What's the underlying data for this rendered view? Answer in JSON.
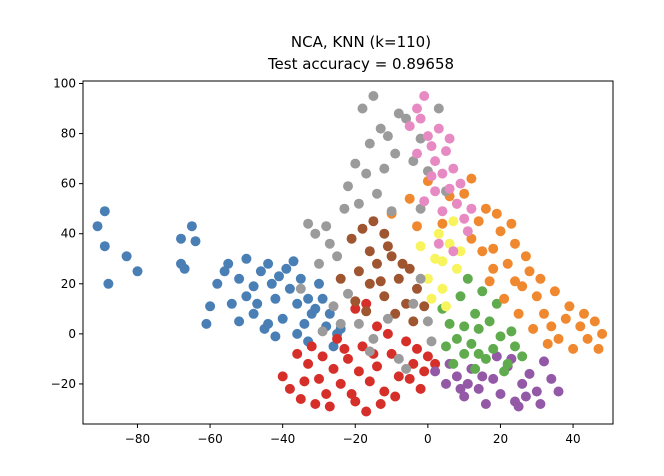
{
  "chart_data": {
    "type": "scatter",
    "title": "NCA, KNN (k=110)",
    "subtitle": "Test accuracy = 0.89658",
    "xlabel": "",
    "ylabel": "",
    "xlim": [
      -95,
      51
    ],
    "ylim": [
      -36,
      101
    ],
    "xticks": [
      -80,
      -60,
      -40,
      -20,
      0,
      20,
      40
    ],
    "yticks": [
      -20,
      0,
      20,
      40,
      60,
      80,
      100
    ],
    "grid": false,
    "legend": "none",
    "colors": {
      "blue": "#4a7fb5",
      "red": "#d62f2a",
      "purple": "#9358a6",
      "green": "#5fab4e",
      "orange": "#f0882f",
      "yellow": "#f7f45e",
      "brown": "#9e5530",
      "gray": "#9b9b9b",
      "pink": "#e78ac3"
    },
    "series": [
      {
        "color": "blue",
        "points": [
          [
            -91,
            43
          ],
          [
            -89,
            49
          ],
          [
            -89,
            35
          ],
          [
            -88,
            20
          ],
          [
            -83,
            31
          ],
          [
            -80,
            25
          ],
          [
            -68,
            38
          ],
          [
            -68,
            28
          ],
          [
            -67,
            26
          ],
          [
            -65,
            43
          ],
          [
            -64,
            37
          ],
          [
            -61,
            4
          ],
          [
            -60,
            11
          ],
          [
            -58,
            20
          ],
          [
            -56,
            25
          ],
          [
            -55,
            28
          ],
          [
            -52,
            22
          ],
          [
            -50,
            15
          ],
          [
            -48,
            8
          ],
          [
            -46,
            25
          ],
          [
            -44,
            28
          ],
          [
            -42,
            14
          ],
          [
            -40,
            6
          ],
          [
            -38,
            18
          ],
          [
            -36,
            12
          ],
          [
            -34,
            4
          ],
          [
            -32,
            8
          ],
          [
            -30,
            20
          ],
          [
            -28,
            3
          ],
          [
            -45,
            2
          ],
          [
            -42,
            -1
          ],
          [
            -36,
            0
          ],
          [
            -33,
            -3
          ],
          [
            -50,
            30
          ],
          [
            -39,
            26
          ],
          [
            -37,
            29
          ],
          [
            -44,
            4
          ],
          [
            -47,
            12
          ],
          [
            -54,
            12
          ],
          [
            -52,
            5
          ],
          [
            -48,
            19
          ],
          [
            -43,
            20
          ],
          [
            -41,
            23
          ],
          [
            -35,
            22
          ],
          [
            -33,
            14
          ],
          [
            -31,
            10
          ],
          [
            -29,
            14
          ],
          [
            -27,
            8
          ],
          [
            -24,
            2
          ],
          [
            -26,
            -5
          ],
          [
            -25,
            0
          ]
        ]
      },
      {
        "color": "red",
        "points": [
          [
            -40,
            -17
          ],
          [
            -38,
            -22
          ],
          [
            -35,
            -26
          ],
          [
            -33,
            -12
          ],
          [
            -30,
            -18
          ],
          [
            -28,
            -24
          ],
          [
            -26,
            -14
          ],
          [
            -24,
            -20
          ],
          [
            -22,
            -10
          ],
          [
            -20,
            -27
          ],
          [
            -18,
            -5
          ],
          [
            -16,
            -19
          ],
          [
            -14,
            -13
          ],
          [
            -12,
            -23
          ],
          [
            -10,
            -8
          ],
          [
            -8,
            -17
          ],
          [
            -6,
            -3
          ],
          [
            -4,
            -12
          ],
          [
            -2,
            -22
          ],
          [
            0,
            -9
          ],
          [
            -25,
            -2
          ],
          [
            -20,
            10
          ],
          [
            -17,
            12
          ],
          [
            -14,
            3
          ],
          [
            -11,
            0
          ],
          [
            -36,
            -8
          ],
          [
            -32,
            -5
          ],
          [
            -29,
            -9
          ],
          [
            -23,
            -6
          ],
          [
            -19,
            -15
          ],
          [
            -15,
            -8
          ],
          [
            -13,
            -28
          ],
          [
            -9,
            -25
          ],
          [
            -5,
            -18
          ],
          [
            -3,
            -6
          ],
          [
            -1,
            -15
          ],
          [
            2,
            -12
          ],
          [
            -27,
            -29
          ],
          [
            -31,
            -28
          ],
          [
            -17,
            -31
          ],
          [
            -21,
            -24
          ],
          [
            -34,
            -19
          ]
        ]
      },
      {
        "color": "purple",
        "points": [
          [
            2,
            -15
          ],
          [
            5,
            -20
          ],
          [
            8,
            -17
          ],
          [
            10,
            -25
          ],
          [
            12,
            -14
          ],
          [
            14,
            -22
          ],
          [
            16,
            -28
          ],
          [
            18,
            -18
          ],
          [
            20,
            -24
          ],
          [
            22,
            -13
          ],
          [
            24,
            -27
          ],
          [
            26,
            -20
          ],
          [
            28,
            -16
          ],
          [
            30,
            -23
          ],
          [
            32,
            -11
          ],
          [
            34,
            -18
          ],
          [
            36,
            -23
          ],
          [
            6,
            -12
          ],
          [
            11,
            -20
          ],
          [
            15,
            -17
          ],
          [
            19,
            -9
          ],
          [
            23,
            -10
          ],
          [
            27,
            -25
          ],
          [
            31,
            -28
          ],
          [
            25,
            -29
          ],
          [
            9,
            -22
          ]
        ]
      },
      {
        "color": "green",
        "points": [
          [
            4,
            10
          ],
          [
            6,
            4
          ],
          [
            8,
            -2
          ],
          [
            10,
            -8
          ],
          [
            12,
            -4
          ],
          [
            14,
            2
          ],
          [
            16,
            -10
          ],
          [
            18,
            -6
          ],
          [
            20,
            -1
          ],
          [
            22,
            -12
          ],
          [
            24,
            -5
          ],
          [
            26,
            -9
          ],
          [
            9,
            15
          ],
          [
            11,
            22
          ],
          [
            13,
            8
          ],
          [
            15,
            17
          ],
          [
            17,
            5
          ],
          [
            19,
            12
          ],
          [
            7,
            -12
          ],
          [
            5,
            -5
          ],
          [
            13,
            -14
          ],
          [
            21,
            -15
          ],
          [
            10,
            3
          ],
          [
            14,
            -8
          ],
          [
            23,
            1
          ]
        ]
      },
      {
        "color": "orange",
        "points": [
          [
            -10,
            48
          ],
          [
            -5,
            54
          ],
          [
            0,
            61
          ],
          [
            4,
            44
          ],
          [
            8,
            52
          ],
          [
            10,
            56
          ],
          [
            12,
            38
          ],
          [
            14,
            45
          ],
          [
            16,
            50
          ],
          [
            18,
            34
          ],
          [
            20,
            41
          ],
          [
            22,
            28
          ],
          [
            24,
            36
          ],
          [
            26,
            19
          ],
          [
            28,
            25
          ],
          [
            30,
            15
          ],
          [
            32,
            8
          ],
          [
            34,
            3
          ],
          [
            36,
            -2
          ],
          [
            38,
            6
          ],
          [
            40,
            -6
          ],
          [
            42,
            3
          ],
          [
            44,
            -2
          ],
          [
            46,
            5
          ],
          [
            48,
            0
          ],
          [
            47,
            -6
          ],
          [
            43,
            8
          ],
          [
            39,
            11
          ],
          [
            35,
            17
          ],
          [
            31,
            22
          ],
          [
            27,
            31
          ],
          [
            23,
            44
          ],
          [
            19,
            48
          ],
          [
            15,
            33
          ],
          [
            17,
            21
          ],
          [
            21,
            14
          ],
          [
            25,
            8
          ],
          [
            29,
            2
          ],
          [
            33,
            -4
          ],
          [
            12,
            62
          ],
          [
            6,
            55
          ],
          [
            -3,
            43
          ],
          [
            24,
            21
          ],
          [
            18,
            26
          ]
        ]
      },
      {
        "color": "yellow",
        "points": [
          [
            0,
            22
          ],
          [
            2,
            30
          ],
          [
            4,
            18
          ],
          [
            6,
            36
          ],
          [
            8,
            26
          ],
          [
            3,
            40
          ],
          [
            -2,
            35
          ],
          [
            5,
            11
          ],
          [
            9,
            33
          ],
          [
            1,
            14
          ],
          [
            7,
            45
          ],
          [
            4,
            29
          ]
        ]
      },
      {
        "color": "brown",
        "points": [
          [
            -21,
            38
          ],
          [
            -18,
            42
          ],
          [
            -15,
            45
          ],
          [
            -12,
            40
          ],
          [
            -16,
            33
          ],
          [
            -10,
            31
          ],
          [
            -14,
            28
          ],
          [
            -19,
            25
          ],
          [
            -16,
            20
          ],
          [
            -12,
            15
          ],
          [
            -8,
            22
          ],
          [
            -5,
            26
          ],
          [
            -3,
            18
          ],
          [
            -6,
            12
          ],
          [
            -9,
            8
          ],
          [
            -4,
            5
          ],
          [
            -1,
            11
          ],
          [
            -20,
            13
          ],
          [
            -13,
            21
          ],
          [
            -7,
            28
          ],
          [
            -11,
            35
          ],
          [
            -24,
            22
          ],
          [
            -17,
            9
          ]
        ]
      },
      {
        "color": "gray",
        "points": [
          [
            -18,
            90
          ],
          [
            -15,
            95
          ],
          [
            -13,
            82
          ],
          [
            -11,
            79
          ],
          [
            -16,
            76
          ],
          [
            -20,
            68
          ],
          [
            -22,
            59
          ],
          [
            -17,
            64
          ],
          [
            -14,
            56
          ],
          [
            -9,
            72
          ],
          [
            -6,
            86
          ],
          [
            -4,
            69
          ],
          [
            -2,
            78
          ],
          [
            0,
            65
          ],
          [
            -19,
            52
          ],
          [
            -28,
            43
          ],
          [
            -33,
            44
          ],
          [
            -31,
            40
          ],
          [
            -27,
            36
          ],
          [
            -25,
            31
          ],
          [
            -22,
            16
          ],
          [
            -19,
            4
          ],
          [
            -15,
            -2
          ],
          [
            -11,
            6
          ],
          [
            -8,
            -10
          ],
          [
            -6,
            -14
          ],
          [
            -4,
            12
          ],
          [
            -2,
            22
          ],
          [
            0,
            5
          ],
          [
            -26,
            11
          ],
          [
            -24,
            4
          ],
          [
            -30,
            28
          ],
          [
            3,
            90
          ],
          [
            -8,
            88
          ],
          [
            -12,
            66
          ],
          [
            -23,
            50
          ],
          [
            -2,
            50
          ],
          [
            -35,
            18
          ],
          [
            -29,
            1
          ],
          [
            1,
            -3
          ],
          [
            -16,
            -7
          ],
          [
            -10,
            49
          ],
          [
            5,
            57
          ]
        ]
      },
      {
        "color": "pink",
        "points": [
          [
            -5,
            83
          ],
          [
            -3,
            90
          ],
          [
            -2,
            86
          ],
          [
            -1,
            95
          ],
          [
            0,
            79
          ],
          [
            1,
            75
          ],
          [
            2,
            69
          ],
          [
            3,
            82
          ],
          [
            4,
            64
          ],
          [
            5,
            73
          ],
          [
            6,
            58
          ],
          [
            7,
            66
          ],
          [
            8,
            52
          ],
          [
            9,
            60
          ],
          [
            10,
            46
          ],
          [
            11,
            41
          ],
          [
            2,
            57
          ],
          [
            4,
            49
          ],
          [
            1,
            63
          ],
          [
            -3,
            72
          ],
          [
            6,
            78
          ],
          [
            -1,
            53
          ],
          [
            3,
            36
          ],
          [
            7,
            33
          ],
          [
            12,
            50
          ]
        ]
      }
    ]
  }
}
